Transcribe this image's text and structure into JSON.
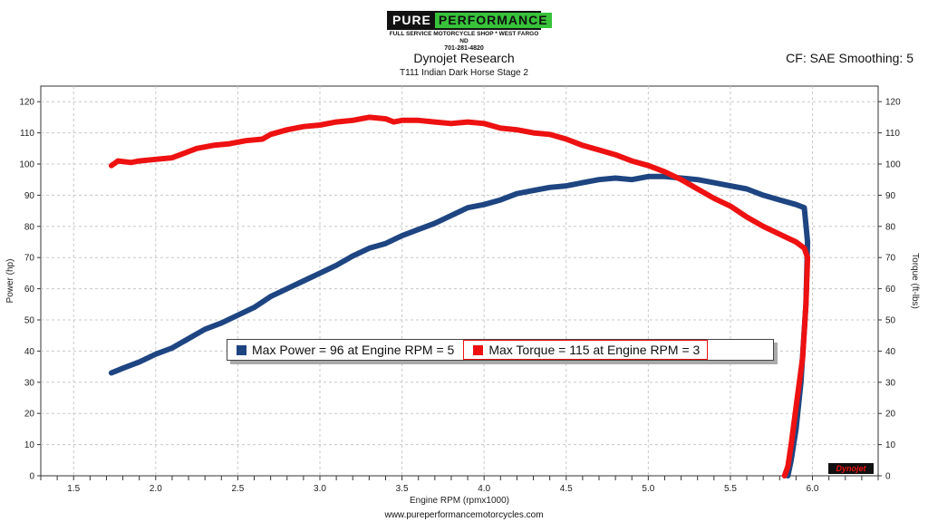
{
  "header": {
    "logo_left": "PURE",
    "logo_right": "PERFORMANCE",
    "logo_sub": "FULL SERVICE MOTORCYCLE SHOP * WEST FARGO ND",
    "logo_phone": "701-281-4820",
    "cf_label": "CF: SAE Smoothing: 5"
  },
  "footer": {
    "url": "www.pureperformancemotorcycles.com"
  },
  "legend": {
    "power_text": "Max Power = 96 at Engine RPM = 5",
    "torque_text": "Max Torque = 115 at Engine RPM = 3"
  },
  "chart_data": {
    "type": "line",
    "title": "Dynojet Research",
    "subtitle": "T111 Indian Dark Horse Stage 2",
    "xlabel": "Engine RPM (rpmx1000)",
    "ylabel": "Power (hp)",
    "y2label": "Torque (ft-lbs)",
    "xlim": [
      1.3,
      6.4
    ],
    "ylim": [
      0,
      125
    ],
    "xticks": [
      "1.5",
      "2.0",
      "2.5",
      "3.0",
      "3.5",
      "4.0",
      "4.5",
      "5.0",
      "5.5",
      "6.0"
    ],
    "yticks": [
      "0",
      "10",
      "20",
      "30",
      "40",
      "50",
      "60",
      "70",
      "80",
      "90",
      "100",
      "110",
      "120"
    ],
    "grid": true,
    "legend_position": "center",
    "series": [
      {
        "axis": "left",
        "color": "#1e4582",
        "x": [
          1.73,
          1.8,
          1.9,
          2.0,
          2.1,
          2.2,
          2.3,
          2.4,
          2.5,
          2.6,
          2.7,
          2.8,
          2.9,
          3.0,
          3.1,
          3.2,
          3.3,
          3.4,
          3.5,
          3.6,
          3.7,
          3.8,
          3.9,
          4.0,
          4.1,
          4.2,
          4.3,
          4.4,
          4.5,
          4.6,
          4.7,
          4.8,
          4.9,
          5.0,
          5.1,
          5.2,
          5.3,
          5.4,
          5.5,
          5.6,
          5.7,
          5.8,
          5.9,
          5.95,
          5.97,
          5.96,
          5.93,
          5.9,
          5.87,
          5.85
        ],
        "values": [
          33,
          34.5,
          36.5,
          39,
          41,
          44,
          47,
          49,
          51.5,
          54,
          57.5,
          60,
          62.5,
          65,
          67.5,
          70.5,
          73,
          74.5,
          77,
          79,
          81,
          83.5,
          86,
          87,
          88.5,
          90.5,
          91.5,
          92.5,
          93,
          94,
          95,
          95.5,
          95,
          96,
          96,
          95.5,
          95,
          94,
          93,
          92,
          90,
          88.5,
          87,
          86,
          75,
          55,
          30,
          15,
          5,
          0
        ]
      },
      {
        "axis": "right",
        "color": "#ee1111",
        "x": [
          1.73,
          1.77,
          1.85,
          1.9,
          2.0,
          2.1,
          2.15,
          2.25,
          2.35,
          2.45,
          2.55,
          2.65,
          2.7,
          2.8,
          2.9,
          3.0,
          3.1,
          3.2,
          3.3,
          3.4,
          3.45,
          3.5,
          3.6,
          3.7,
          3.8,
          3.9,
          4.0,
          4.1,
          4.2,
          4.3,
          4.4,
          4.5,
          4.6,
          4.7,
          4.8,
          4.9,
          5.0,
          5.1,
          5.2,
          5.3,
          5.4,
          5.5,
          5.6,
          5.7,
          5.8,
          5.9,
          5.95,
          5.97,
          5.96,
          5.94,
          5.9,
          5.87,
          5.85,
          5.83
        ],
        "values": [
          99.5,
          101,
          100.5,
          101,
          101.5,
          102,
          103,
          105,
          106,
          106.5,
          107.5,
          108,
          109.5,
          111,
          112,
          112.5,
          113.5,
          114,
          115,
          114.5,
          113.5,
          114,
          114,
          113.5,
          113,
          113.5,
          113,
          111.5,
          111,
          110,
          109.5,
          108,
          106,
          104.5,
          103,
          101,
          99.5,
          97.5,
          95,
          92,
          89,
          86.5,
          83,
          80,
          77.5,
          75,
          73,
          70,
          55,
          38,
          22,
          10,
          3,
          0
        ]
      }
    ]
  }
}
